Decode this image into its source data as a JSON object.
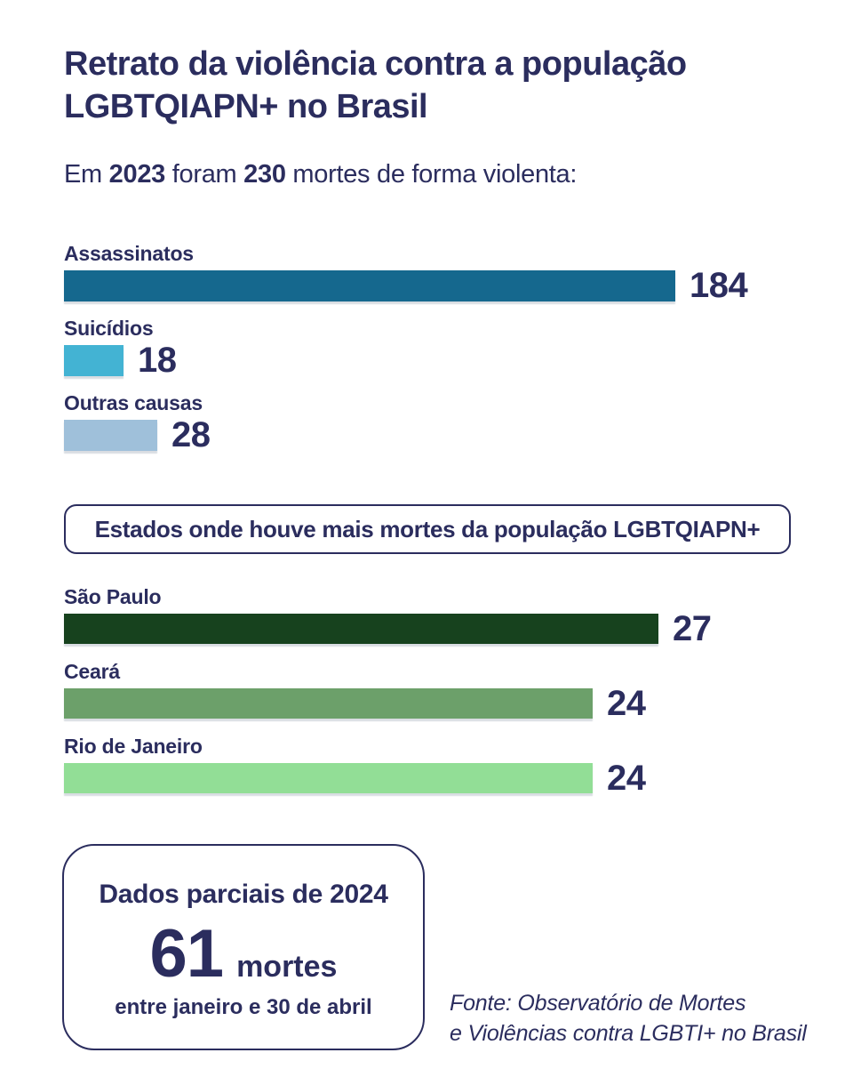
{
  "header": {
    "title_line1": "Retrato da violência contra a população",
    "title_line2": "LGBTQIAPN+ no Brasil",
    "subtitle": {
      "pre": "Em ",
      "year": "2023",
      "mid": " foram ",
      "count": "230",
      "post": " mortes de forma violenta:"
    }
  },
  "colors": {
    "text_navy": "#2B2D5E",
    "bar_assassinatos": "#15688E",
    "bar_suicidios": "#43B3D3",
    "bar_outras_causas": "#9FC0DA",
    "bar_sao_paulo": "#17421E",
    "bar_ceara": "#6CA06A",
    "bar_rio_de_janeiro": "#92DE96"
  },
  "chart_data": [
    {
      "type": "bar",
      "orientation": "horizontal",
      "title": "Em 2023 foram 230 mortes de forma violenta",
      "categories": [
        "Assassinatos",
        "Suicídios",
        "Outras causas"
      ],
      "values": [
        184,
        18,
        28
      ],
      "colors": [
        "#15688E",
        "#43B3D3",
        "#9FC0DA"
      ],
      "xlim": [
        0,
        184
      ],
      "grid": false,
      "value_label_position": "end-of-bar"
    },
    {
      "type": "bar",
      "orientation": "horizontal",
      "title": "Estados onde houve mais mortes da população LGBTQIAPN+",
      "categories": [
        "São Paulo",
        "Ceará",
        "Rio de Janeiro"
      ],
      "values": [
        27,
        24,
        24
      ],
      "colors": [
        "#17421E",
        "#6CA06A",
        "#92DE96"
      ],
      "xlim": [
        0,
        27
      ],
      "grid": false,
      "value_label_position": "end-of-bar"
    }
  ],
  "states_box": {
    "label": "Estados onde houve mais mortes da população LGBTQIAPN+"
  },
  "partial_box": {
    "title": "Dados parciais de 2024",
    "number": "61",
    "unit": "mortes",
    "period": "entre janeiro e 30 de abril"
  },
  "source": {
    "line1": "Fonte: Observatório de Mortes",
    "line2": "e Violências contra LGBTI+ no Brasil"
  }
}
